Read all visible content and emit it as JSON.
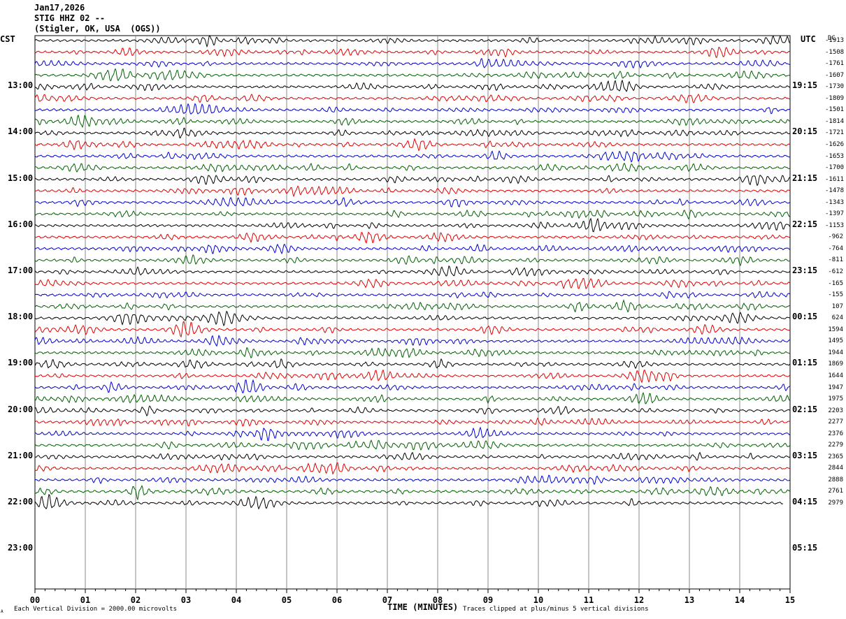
{
  "header": {
    "date": "Jan17,2026",
    "station": "STIG HHZ 02 --",
    "location": "(Stigler, OK, USA  (OGS))"
  },
  "left_axis_title": "CST",
  "right_axis_title": "UTC",
  "dc_title": "DC",
  "footer": {
    "xlabel": "TIME (MINUTES)",
    "scale_note": "Each Vertical Division = 2000.00 microvolts",
    "clip_note": "Traces clipped at plus/minus 5 vertical divisions",
    "corner_mark": "A"
  },
  "chart_data": {
    "type": "line",
    "description": "helicorder",
    "xlabel": "TIME (MINUTES)",
    "xlim": [
      0,
      15
    ],
    "x_ticks": [
      "00",
      "01",
      "02",
      "03",
      "04",
      "05",
      "06",
      "07",
      "08",
      "09",
      "10",
      "11",
      "12",
      "13",
      "14",
      "15"
    ],
    "cst_labels": [
      "13:00",
      "14:00",
      "15:00",
      "16:00",
      "17:00",
      "18:00",
      "19:00",
      "20:00",
      "21:00",
      "22:00",
      "23:00"
    ],
    "utc_labels": [
      "19:15",
      "20:15",
      "21:15",
      "22:15",
      "23:15",
      "00:15",
      "01:15",
      "02:15",
      "03:15",
      "04:15",
      "05:15"
    ],
    "trace_colors": [
      "#000000",
      "#e00000",
      "#0000d0",
      "#006000"
    ],
    "dc_offsets": [
      "-1913",
      "-1508",
      "-1761",
      "-1607",
      "-1730",
      "-1809",
      "-1501",
      "-1814",
      "-1721",
      "-1626",
      "-1653",
      "-1700",
      "-1611",
      "-1478",
      "-1343",
      "-1397",
      "-1153",
      "-962",
      "-764",
      "-811",
      "-612",
      "-165",
      "-155",
      "107",
      "624",
      "1594",
      "1495",
      "1944",
      "1869",
      "1644",
      "1947",
      "1975",
      "2203",
      "2277",
      "2376",
      "2279",
      "2365",
      "2844",
      "2888",
      "2761",
      "2979"
    ]
  }
}
